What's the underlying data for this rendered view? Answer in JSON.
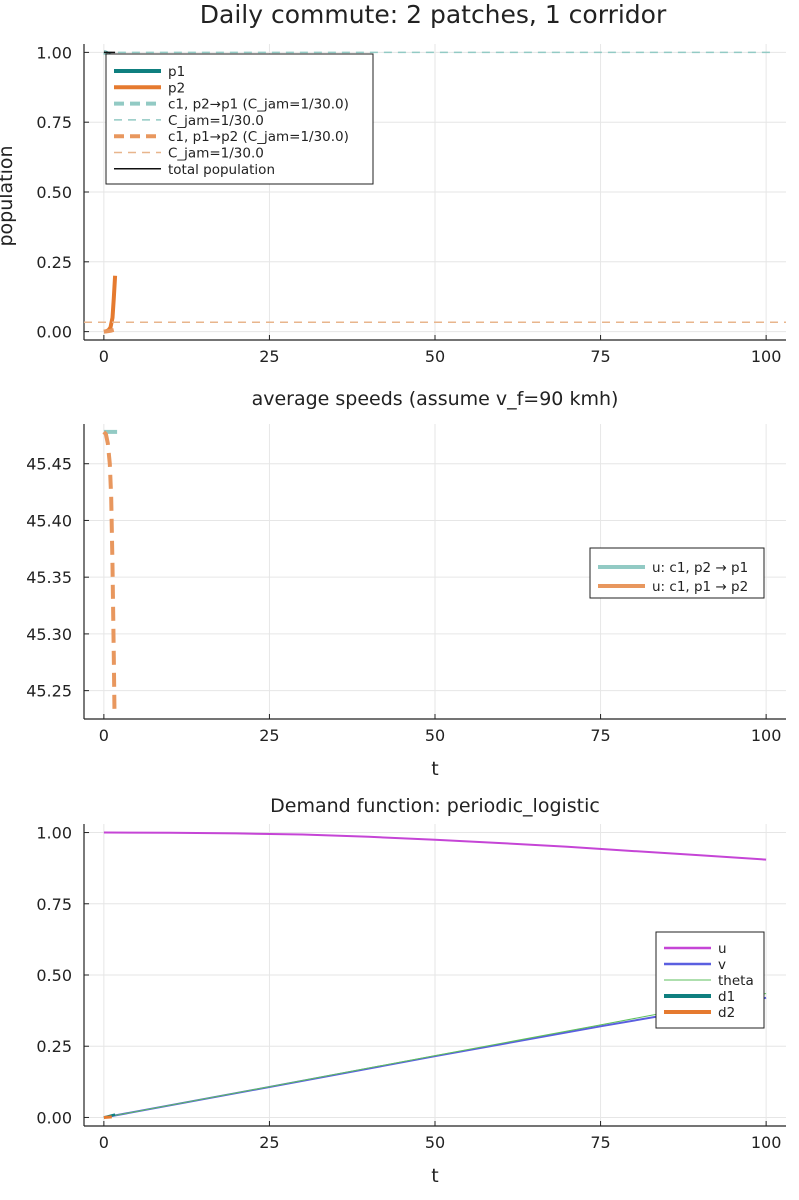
{
  "chart_data": [
    {
      "type": "line",
      "title": "Daily commute: 2 patches, 1 corridor",
      "xlabel": "",
      "ylabel": "population",
      "xlim": [
        -3,
        103
      ],
      "ylim": [
        -0.03,
        1.03
      ],
      "xticks": [
        "0",
        "25",
        "50",
        "75",
        "100"
      ],
      "yticks": [
        "0.00",
        "0.25",
        "0.50",
        "0.75",
        "1.00"
      ],
      "grid": true,
      "legend_position": "top-left",
      "series": [
        {
          "name": "p1",
          "color": "#0f7f7f",
          "width": 4,
          "dash": "",
          "x": [
            0,
            0.3,
            0.7,
            1.0,
            1.3,
            1.5,
            1.7
          ],
          "y": [
            1.0,
            0.999,
            0.995,
            0.985,
            0.96,
            0.92,
            0.88
          ]
        },
        {
          "name": "p2",
          "color": "#e57a2f",
          "width": 4,
          "dash": "",
          "x": [
            0,
            0.3,
            0.7,
            1.0,
            1.3,
            1.5,
            1.7
          ],
          "y": [
            0.0,
            0.001,
            0.005,
            0.015,
            0.05,
            0.12,
            0.2
          ]
        },
        {
          "name": "c1, p2→p1 (C_jam=1/30.0)",
          "color": "#92cac4",
          "width": 4,
          "dash": "10,6",
          "x": [
            0,
            0.5,
            1.0,
            1.3,
            1.5,
            1.7
          ],
          "y": [
            1.0,
            0.995,
            0.96,
            0.9,
            0.85,
            0.8
          ]
        },
        {
          "name": "C_jam=1/30.0",
          "color": "#92cac4",
          "width": 1.5,
          "dash": "8,6",
          "x": [
            0,
            101
          ],
          "y": [
            1.0,
            1.0
          ]
        },
        {
          "name": "c1, p1→p2 (C_jam=1/30.0)",
          "color": "#e8975e",
          "width": 4,
          "dash": "10,6",
          "x": [
            0,
            0.5,
            1.0,
            1.3,
            1.5,
            1.7
          ],
          "y": [
            0.0,
            0.001,
            0.003,
            0.005,
            0.006,
            0.007
          ]
        },
        {
          "name": "C_jam=1/30.0",
          "color": "#e8b58c",
          "width": 1.5,
          "dash": "8,6",
          "x": [
            -3,
            103
          ],
          "y": [
            0.0333,
            0.0333
          ]
        },
        {
          "name": "total population",
          "color": "#111111",
          "width": 1.5,
          "dash": "",
          "x": [
            0,
            1.7
          ],
          "y": [
            1.0,
            1.0
          ]
        }
      ],
      "legend": [
        {
          "label": "p1",
          "color": "#0f7f7f",
          "width": 4,
          "dash": ""
        },
        {
          "label": "p2",
          "color": "#e57a2f",
          "width": 4,
          "dash": ""
        },
        {
          "label": "c1, p2→p1 (C_jam=1/30.0)",
          "color": "#92cac4",
          "width": 4,
          "dash": "10,6"
        },
        {
          "label": "C_jam=1/30.0",
          "color": "#92cac4",
          "width": 1.5,
          "dash": "8,6"
        },
        {
          "label": "c1, p1→p2 (C_jam=1/30.0)",
          "color": "#e8975e",
          "width": 4,
          "dash": "10,6"
        },
        {
          "label": "C_jam=1/30.0",
          "color": "#e8b58c",
          "width": 1.5,
          "dash": "8,6"
        },
        {
          "label": "total population",
          "color": "#111111",
          "width": 1.5,
          "dash": ""
        }
      ]
    },
    {
      "type": "line",
      "title": "average speeds (assume v_f=90 kmh)",
      "xlabel": "t",
      "ylabel": "",
      "xlim": [
        -3,
        103
      ],
      "ylim": [
        45.225,
        45.485
      ],
      "xticks": [
        "0",
        "25",
        "50",
        "75",
        "100"
      ],
      "yticks": [
        "45.25",
        "45.30",
        "45.35",
        "45.40",
        "45.45"
      ],
      "grid": true,
      "legend_position": "right",
      "series": [
        {
          "name": "u: c1, p2 → p1",
          "color": "#92cac4",
          "width": 4,
          "dash": "",
          "x": [
            0,
            2.0
          ],
          "y": [
            45.478,
            45.478
          ]
        },
        {
          "name": "u: c1, p1 → p2",
          "color": "#e8975e",
          "width": 4,
          "dash": "14,8",
          "x": [
            0,
            0.3,
            0.6,
            0.9,
            1.1,
            1.3,
            1.5,
            1.6
          ],
          "y": [
            45.478,
            45.476,
            45.468,
            45.45,
            45.42,
            45.36,
            45.28,
            45.23
          ]
        }
      ],
      "legend": [
        {
          "label": "u: c1, p2 → p1",
          "color": "#92cac4",
          "width": 4,
          "dash": ""
        },
        {
          "label": "u: c1, p1 → p2",
          "color": "#e8975e",
          "width": 4,
          "dash": ""
        }
      ]
    },
    {
      "type": "line",
      "title": "Demand function: periodic_logistic",
      "xlabel": "t",
      "ylabel": "",
      "xlim": [
        -3,
        103
      ],
      "ylim": [
        -0.03,
        1.03
      ],
      "xticks": [
        "0",
        "25",
        "50",
        "75",
        "100"
      ],
      "yticks": [
        "0.00",
        "0.25",
        "0.50",
        "0.75",
        "1.00"
      ],
      "grid": true,
      "legend_position": "right",
      "series": [
        {
          "name": "u",
          "color": "#c545d6",
          "width": 2,
          "dash": "",
          "x": [
            0,
            10,
            20,
            30,
            40,
            50,
            60,
            70,
            80,
            90,
            100
          ],
          "y": [
            1.0,
            0.999,
            0.997,
            0.993,
            0.985,
            0.975,
            0.963,
            0.95,
            0.935,
            0.92,
            0.905
          ]
        },
        {
          "name": "v",
          "color": "#5a5fe0",
          "width": 2,
          "dash": "",
          "x": [
            0,
            25,
            50,
            75,
            100
          ],
          "y": [
            0.0,
            0.107,
            0.215,
            0.32,
            0.42
          ]
        },
        {
          "name": "theta",
          "color": "#5cbf5c",
          "width": 1,
          "dash": "",
          "x": [
            0,
            25,
            50,
            75,
            100
          ],
          "y": [
            0.0,
            0.108,
            0.217,
            0.325,
            0.435
          ]
        },
        {
          "name": "d1",
          "color": "#0f7f7f",
          "width": 2.5,
          "dash": "",
          "x": [
            0,
            1.7
          ],
          "y": [
            0.0,
            0.01
          ]
        },
        {
          "name": "d2",
          "color": "#e57a2f",
          "width": 3,
          "dash": "",
          "x": [
            0,
            1.2
          ],
          "y": [
            0.0,
            0.002
          ]
        }
      ],
      "legend": [
        {
          "label": "u",
          "color": "#c545d6",
          "width": 2.5,
          "dash": ""
        },
        {
          "label": "v",
          "color": "#5a5fe0",
          "width": 2.5,
          "dash": ""
        },
        {
          "label": "theta",
          "color": "#5cbf5c",
          "width": 1,
          "dash": ""
        },
        {
          "label": "d1",
          "color": "#0f7f7f",
          "width": 4,
          "dash": ""
        },
        {
          "label": "d2",
          "color": "#e57a2f",
          "width": 4,
          "dash": ""
        }
      ]
    }
  ]
}
